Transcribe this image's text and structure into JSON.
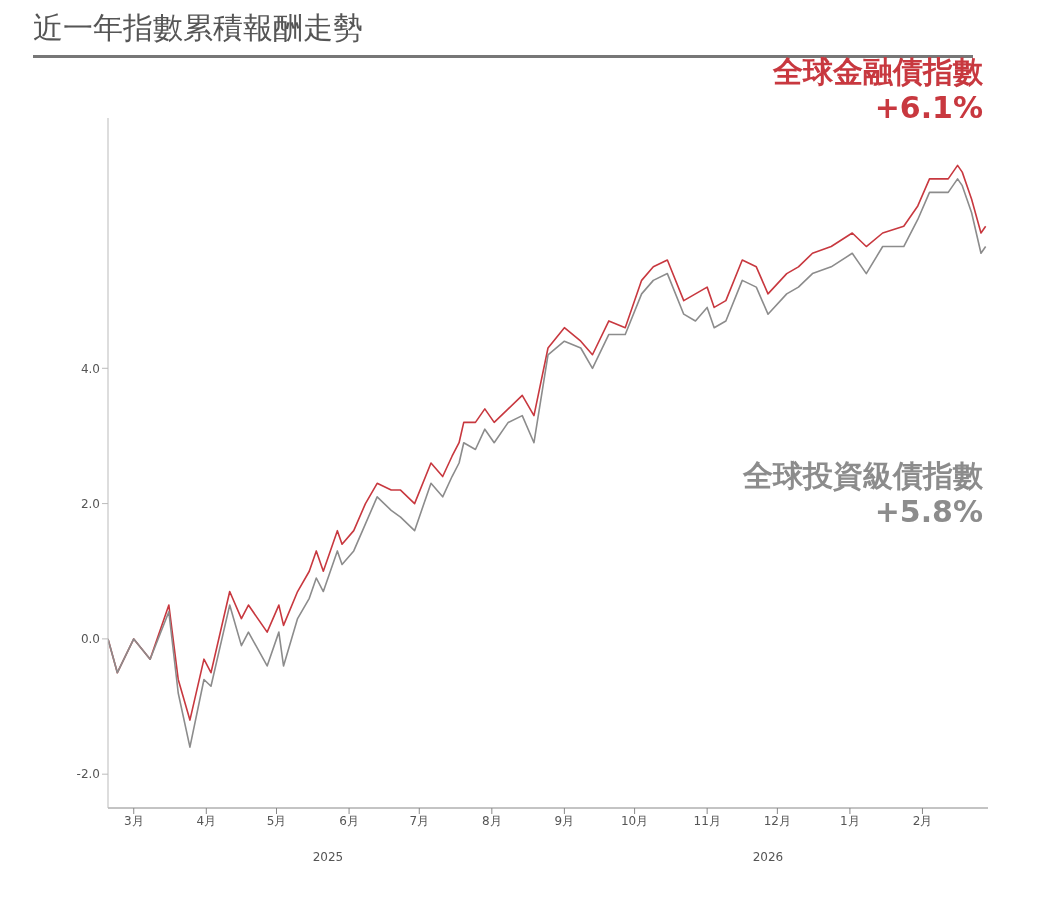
{
  "chart_data": {
    "type": "line",
    "title": "近一年指數累積報酬走勢",
    "x": [
      "2025-02-18",
      "2025-02-22",
      "2025-03-01",
      "2025-03-08",
      "2025-03-16",
      "2025-03-20",
      "2025-03-25",
      "2025-03-31",
      "2025-04-03",
      "2025-04-11",
      "2025-04-16",
      "2025-04-19",
      "2025-04-27",
      "2025-05-02",
      "2025-05-04",
      "2025-05-10",
      "2025-05-15",
      "2025-05-18",
      "2025-05-21",
      "2025-05-27",
      "2025-05-29",
      "2025-06-03",
      "2025-06-08",
      "2025-06-13",
      "2025-06-19",
      "2025-06-23",
      "2025-06-29",
      "2025-07-06",
      "2025-07-11",
      "2025-07-15",
      "2025-07-18",
      "2025-07-20",
      "2025-07-25",
      "2025-07-29",
      "2025-08-02",
      "2025-08-08",
      "2025-08-14",
      "2025-08-19",
      "2025-08-25",
      "2025-09-01",
      "2025-09-08",
      "2025-09-13",
      "2025-09-20",
      "2025-09-27",
      "2025-10-04",
      "2025-10-09",
      "2025-10-15",
      "2025-10-22",
      "2025-10-27",
      "2025-11-01",
      "2025-11-04",
      "2025-11-09",
      "2025-11-16",
      "2025-11-22",
      "2025-11-27",
      "2025-12-05",
      "2025-12-10",
      "2025-12-16",
      "2025-12-24",
      "2026-01-02",
      "2026-01-08",
      "2026-01-15",
      "2026-01-24",
      "2026-01-30",
      "2026-02-04",
      "2026-02-12",
      "2026-02-16",
      "2026-02-18",
      "2026-02-22",
      "2026-02-26",
      "2026-02-28"
    ],
    "series": [
      {
        "name": "全球金融債指數",
        "color": "#c8383f",
        "values": [
          0.0,
          -0.5,
          0.0,
          -0.3,
          0.5,
          -0.6,
          -1.2,
          -0.3,
          -0.5,
          0.7,
          0.3,
          0.5,
          0.1,
          0.5,
          0.2,
          0.7,
          1.0,
          1.3,
          1.0,
          1.6,
          1.4,
          1.6,
          2.0,
          2.3,
          2.2,
          2.2,
          2.0,
          2.6,
          2.4,
          2.7,
          2.9,
          3.2,
          3.2,
          3.4,
          3.2,
          3.4,
          3.6,
          3.3,
          4.3,
          4.6,
          4.4,
          4.2,
          4.7,
          4.6,
          5.3,
          5.5,
          5.6,
          5.0,
          5.1,
          5.2,
          4.9,
          5.0,
          5.6,
          5.5,
          5.1,
          5.4,
          5.5,
          5.7,
          5.8,
          6.0,
          5.8,
          6.0,
          6.1,
          6.4,
          6.8,
          6.8,
          7.0,
          6.9,
          6.5,
          6.0,
          6.1
        ]
      },
      {
        "name": "全球投資級債指數",
        "color": "#8c8c8c",
        "values": [
          0.0,
          -0.5,
          0.0,
          -0.3,
          0.4,
          -0.8,
          -1.6,
          -0.6,
          -0.7,
          0.5,
          -0.1,
          0.1,
          -0.4,
          0.1,
          -0.4,
          0.3,
          0.6,
          0.9,
          0.7,
          1.3,
          1.1,
          1.3,
          1.7,
          2.1,
          1.9,
          1.8,
          1.6,
          2.3,
          2.1,
          2.4,
          2.6,
          2.9,
          2.8,
          3.1,
          2.9,
          3.2,
          3.3,
          2.9,
          4.2,
          4.4,
          4.3,
          4.0,
          4.5,
          4.5,
          5.1,
          5.3,
          5.4,
          4.8,
          4.7,
          4.9,
          4.6,
          4.7,
          5.3,
          5.2,
          4.8,
          5.1,
          5.2,
          5.4,
          5.5,
          5.7,
          5.4,
          5.8,
          5.8,
          6.2,
          6.6,
          6.6,
          6.8,
          6.7,
          6.3,
          5.7,
          5.8
        ]
      }
    ],
    "annotations": [
      "+6.1%",
      "+5.8%",
      "2025",
      "2026"
    ],
    "xlim": [
      "2025-02-18",
      "2026-03-01"
    ],
    "xticks": [
      {
        "value": "2025-03-01",
        "label": "3月"
      },
      {
        "value": "2025-04-01",
        "label": "4月"
      },
      {
        "value": "2025-05-01",
        "label": "5月"
      },
      {
        "value": "2025-06-01",
        "label": "6月"
      },
      {
        "value": "2025-07-01",
        "label": "7月"
      },
      {
        "value": "2025-08-01",
        "label": "8月"
      },
      {
        "value": "2025-09-01",
        "label": "9月"
      },
      {
        "value": "2025-10-01",
        "label": "10月"
      },
      {
        "value": "2025-11-01",
        "label": "11月"
      },
      {
        "value": "2025-12-01",
        "label": "12月"
      },
      {
        "value": "2026-01-01",
        "label": "1月"
      },
      {
        "value": "2026-02-01",
        "label": "2月"
      }
    ],
    "ylim": [
      -2.5,
      7.7
    ],
    "yticks": [
      {
        "value": -2,
        "label": "-2.0"
      },
      {
        "value": 0,
        "label": "0.0"
      },
      {
        "value": 2,
        "label": "2.0"
      },
      {
        "value": 4,
        "label": "4.0"
      }
    ],
    "grid": false,
    "legend": false,
    "marker": "none",
    "line_style": "solid"
  }
}
